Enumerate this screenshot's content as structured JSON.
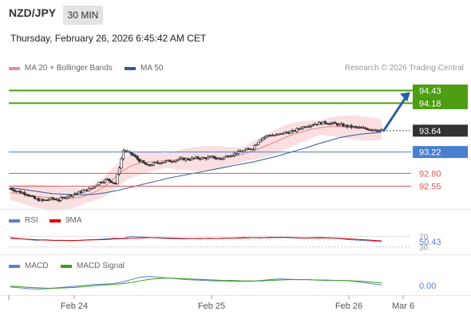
{
  "header": {
    "symbol": "NZD/JPY",
    "timeframe": "30 MIN",
    "datetime": "Thursday, February 26, 2026 6:45:42 AM CET"
  },
  "legend_main": [
    {
      "label": "MA 20 + Bollinger Bands",
      "color": "#f08c8c"
    },
    {
      "label": "MA 50",
      "color": "#2e5a99"
    }
  ],
  "credit": "Research © 2026 Trading Central",
  "legend_rsi": [
    {
      "label": "RSI",
      "color": "#5b7fd0"
    },
    {
      "label": "9MA",
      "color": "#e00000"
    }
  ],
  "legend_macd": [
    {
      "label": "MACD",
      "color": "#5b7fd0"
    },
    {
      "label": "MACD Signal",
      "color": "#3aa01a"
    }
  ],
  "colors": {
    "target": "#4d9e12",
    "pivot": "#4a7fd0",
    "support": "#e05555",
    "current": "#333333",
    "arrow": "#2a5fa0"
  },
  "chart_data": [
    {
      "type": "candlestick",
      "ylim": [
        92.1,
        94.72
      ],
      "x_tick_labels": [
        "Feb 24",
        "Feb 25",
        "Feb 26",
        "Mar 6"
      ],
      "levels": [
        {
          "value": 94.43,
          "label": "94.43",
          "kind": "target"
        },
        {
          "value": 94.18,
          "label": "94.18",
          "kind": "target"
        },
        {
          "value": 93.64,
          "label": "93.64",
          "kind": "current"
        },
        {
          "value": 93.22,
          "label": "93.22",
          "kind": "pivot"
        },
        {
          "value": 92.8,
          "label": "92.80",
          "kind": "support"
        },
        {
          "value": 92.55,
          "label": "92.55",
          "kind": "support"
        }
      ],
      "close_path": [
        92.5,
        92.44,
        92.4,
        92.3,
        92.26,
        92.3,
        92.28,
        92.35,
        92.4,
        92.45,
        92.5,
        92.62,
        92.68,
        92.6,
        93.25,
        93.18,
        93.05,
        92.95,
        93.0,
        93.03,
        93.05,
        93.08,
        93.08,
        93.1,
        93.1,
        93.12,
        93.08,
        93.15,
        93.2,
        93.25,
        93.3,
        93.48,
        93.55,
        93.55,
        93.6,
        93.62,
        93.7,
        93.75,
        93.78,
        93.8,
        93.78,
        93.75,
        93.72,
        93.7,
        93.68,
        93.66,
        93.64
      ],
      "ma20": [
        92.42,
        92.4,
        92.38,
        92.35,
        92.33,
        92.31,
        92.3,
        92.31,
        92.33,
        92.38,
        92.45,
        92.55,
        92.7,
        92.85,
        92.95,
        93.0,
        93.02,
        93.04,
        93.05,
        93.06,
        93.07,
        93.08,
        93.09,
        93.1,
        93.11,
        93.12,
        93.14,
        93.18,
        93.24,
        93.3,
        93.37,
        93.44,
        93.52,
        93.58,
        93.63,
        93.67,
        93.7,
        93.72,
        93.72,
        93.71,
        93.7,
        93.68,
        93.67,
        93.66
      ],
      "ma50": [
        92.52,
        92.49,
        92.46,
        92.43,
        92.4,
        92.39,
        92.38,
        92.38,
        92.39,
        92.42,
        92.46,
        92.51,
        92.56,
        92.61,
        92.66,
        92.71,
        92.75,
        92.79,
        92.83,
        92.87,
        92.91,
        92.95,
        92.99,
        93.03,
        93.08,
        93.13,
        93.19,
        93.25,
        93.31,
        93.38,
        93.44,
        93.5,
        93.54,
        93.57,
        93.59,
        93.61
      ]
    },
    {
      "type": "line",
      "name": "RSI",
      "tick_labels": [
        "70",
        "30"
      ],
      "last_value": 50.43,
      "ylim": [
        20,
        80
      ],
      "series": [
        {
          "values": [
            66,
            62,
            58,
            55,
            57,
            54,
            55,
            53,
            55,
            57,
            58,
            60,
            63,
            62,
            70,
            68,
            66,
            64,
            62,
            61,
            60,
            62,
            61,
            63,
            62,
            63,
            64,
            66,
            65,
            64,
            67,
            66,
            65,
            64,
            63,
            65,
            66,
            64,
            62,
            58,
            56,
            54,
            52,
            50.43
          ]
        },
        {
          "values": [
            62,
            61,
            59,
            57,
            56,
            55,
            55,
            54,
            55,
            56,
            57,
            58,
            60,
            61,
            63,
            64,
            65,
            65,
            64,
            63,
            62,
            62,
            62,
            62,
            62,
            63,
            63,
            64,
            65,
            65,
            65,
            66,
            66,
            65,
            64,
            64,
            64,
            64,
            63,
            61,
            59,
            57,
            55,
            53
          ]
        }
      ]
    },
    {
      "type": "line",
      "name": "MACD",
      "last_value": 0.0,
      "series": [
        {
          "values": [
            -0.04,
            -0.06,
            -0.08,
            -0.09,
            -0.08,
            -0.06,
            -0.04,
            -0.02,
            0.0,
            0.02,
            0.03,
            0.04,
            0.08,
            0.14,
            0.2,
            0.22,
            0.2,
            0.18,
            0.16,
            0.14,
            0.13,
            0.12,
            0.11,
            0.11,
            0.1,
            0.1,
            0.1,
            0.12,
            0.14,
            0.16,
            0.15,
            0.14,
            0.14,
            0.13,
            0.12,
            0.12,
            0.12,
            0.1,
            0.07,
            0.04,
            0.01
          ]
        },
        {
          "values": [
            -0.02,
            -0.03,
            -0.05,
            -0.06,
            -0.07,
            -0.07,
            -0.06,
            -0.05,
            -0.03,
            -0.01,
            0.01,
            0.02,
            0.04,
            0.07,
            0.11,
            0.15,
            0.17,
            0.18,
            0.17,
            0.16,
            0.15,
            0.14,
            0.13,
            0.12,
            0.12,
            0.11,
            0.11,
            0.11,
            0.12,
            0.13,
            0.14,
            0.14,
            0.14,
            0.13,
            0.13,
            0.12,
            0.12,
            0.11,
            0.1,
            0.08,
            0.06
          ]
        }
      ]
    }
  ]
}
